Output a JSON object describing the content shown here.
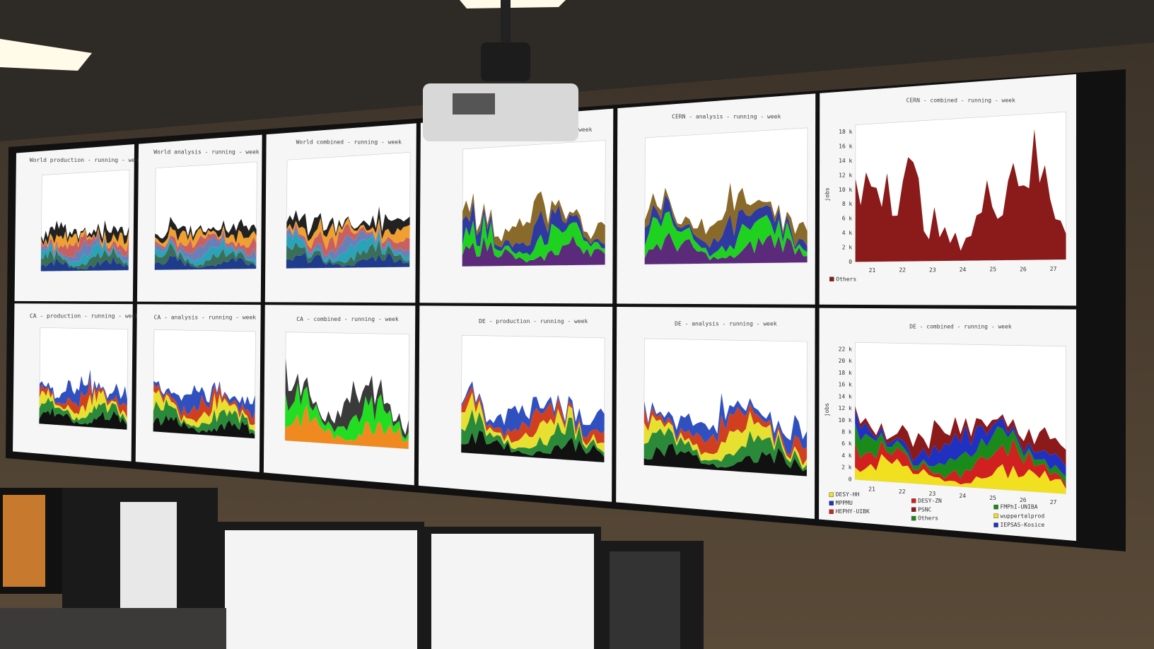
{
  "wall": {
    "groups": [
      {
        "label": "World",
        "row": 0,
        "side": 0,
        "panels": [
          {
            "title": "World production - running - week"
          },
          {
            "title": "World analysis - running - week"
          },
          {
            "title": "World combined - running - week"
          }
        ]
      },
      {
        "label": "CERN",
        "row": 0,
        "side": 1,
        "panels": [
          {
            "title": "CERN - production - running - week"
          },
          {
            "title": "CERN - analysis - running - week"
          },
          {
            "title": "CERN - combined - running - week",
            "yticks": [
              "0",
              "2 k",
              "4 k",
              "6 k",
              "8 k",
              "10 k",
              "12 k",
              "14 k",
              "16 k",
              "18 k"
            ],
            "xticks": [
              "21",
              "22",
              "23",
              "24",
              "25",
              "26",
              "27"
            ],
            "ylabel": "jobs",
            "legend": [
              "Others"
            ]
          }
        ]
      },
      {
        "label": "CA",
        "row": 1,
        "side": 0,
        "panels": [
          {
            "title": "CA - production - running - week"
          },
          {
            "title": "CA - analysis - running - week"
          },
          {
            "title": "CA - combined - running - week"
          }
        ]
      },
      {
        "label": "DE",
        "row": 1,
        "side": 1,
        "panels": [
          {
            "title": "DE - production - running - week"
          },
          {
            "title": "DE - analysis - running - week"
          },
          {
            "title": "DE - combined - running - week",
            "yticks": [
              "0",
              "2 k",
              "4 k",
              "6 k",
              "8 k",
              "10 k",
              "12 k",
              "14 k",
              "16 k",
              "18 k",
              "20 k",
              "22 k"
            ],
            "xticks": [
              "21",
              "22",
              "23",
              "24",
              "25",
              "26",
              "27"
            ],
            "ylabel": "jobs",
            "legend": [
              "DESY-HH",
              "DESY-ZN",
              "FMPhI-UNIBA",
              "MPPMU",
              "PSNC",
              "wuppertalprod",
              "HEPHY-UIBK",
              "Others",
              "IEPSAS-Kosice"
            ]
          }
        ]
      }
    ]
  }
}
